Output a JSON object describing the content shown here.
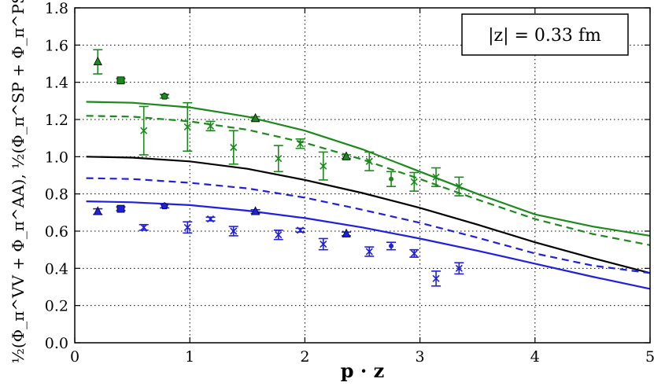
{
  "chart_data": {
    "type": "scatter",
    "xlabel": "p · z",
    "ylabel": "½(Φ_π^VV + Φ_π^AA), ½(Φ_π^SP + Φ_π^PS)",
    "xlim": [
      0,
      5
    ],
    "ylim": [
      0,
      1.8
    ],
    "xticks": [
      0,
      1,
      2,
      3,
      4,
      5
    ],
    "yticks": [
      0.0,
      0.2,
      0.4,
      0.6,
      0.8,
      1.0,
      1.2,
      1.4,
      1.6,
      1.8
    ],
    "xtick_labels": [
      "0",
      "1",
      "2",
      "3",
      "4",
      "5"
    ],
    "ytick_labels": [
      "0.0",
      "0.2",
      "0.4",
      "0.6",
      "0.8",
      "1.0",
      "1.2",
      "1.4",
      "1.6",
      "1.8"
    ],
    "grid": true,
    "annotation": "|z| = 0.33 fm",
    "colors": {
      "green": "#1a8a1a",
      "blue": "#1f1fdf",
      "black": "#000000"
    },
    "curves": [
      {
        "color": "green",
        "style": "solid",
        "x": [
          0.1,
          0.5,
          1.0,
          1.5,
          2.0,
          2.5,
          3.0,
          3.5,
          4.0,
          4.5,
          5.0
        ],
        "y": [
          1.295,
          1.29,
          1.265,
          1.215,
          1.14,
          1.04,
          0.92,
          0.8,
          0.69,
          0.625,
          0.575
        ]
      },
      {
        "color": "green",
        "style": "dashed",
        "x": [
          0.1,
          0.5,
          1.0,
          1.5,
          2.0,
          2.5,
          3.0,
          3.5,
          4.0,
          4.5,
          5.0
        ],
        "y": [
          1.22,
          1.215,
          1.19,
          1.145,
          1.075,
          0.985,
          0.88,
          0.77,
          0.665,
          0.585,
          0.525
        ]
      },
      {
        "color": "black",
        "style": "solid",
        "x": [
          0.1,
          0.5,
          1.0,
          1.5,
          2.0,
          2.5,
          3.0,
          3.5,
          4.0,
          4.5,
          5.0
        ],
        "y": [
          1.0,
          0.995,
          0.975,
          0.935,
          0.875,
          0.805,
          0.725,
          0.635,
          0.54,
          0.455,
          0.375
        ]
      },
      {
        "color": "blue",
        "style": "dashed",
        "x": [
          0.1,
          0.5,
          1.0,
          1.5,
          2.0,
          2.5,
          3.0,
          3.5,
          4.0,
          4.5,
          5.0
        ],
        "y": [
          0.885,
          0.88,
          0.86,
          0.83,
          0.78,
          0.715,
          0.645,
          0.565,
          0.48,
          0.415,
          0.375
        ]
      },
      {
        "color": "blue",
        "style": "solid",
        "x": [
          0.1,
          0.5,
          1.0,
          1.5,
          2.0,
          2.5,
          3.0,
          3.5,
          4.0,
          4.5,
          5.0
        ],
        "y": [
          0.76,
          0.755,
          0.74,
          0.71,
          0.67,
          0.62,
          0.56,
          0.495,
          0.425,
          0.355,
          0.29
        ]
      }
    ],
    "points": [
      {
        "color": "green",
        "marker": "triangle",
        "x": 0.2,
        "y": 1.51,
        "err": 0.065
      },
      {
        "color": "green",
        "marker": "square",
        "x": 0.4,
        "y": 1.41,
        "err": 0.01
      },
      {
        "color": "green",
        "marker": "pentagon",
        "x": 0.78,
        "y": 1.325,
        "err": 0.01
      },
      {
        "color": "green",
        "marker": "x",
        "x": 0.6,
        "y": 1.14,
        "err": 0.13
      },
      {
        "color": "green",
        "marker": "x",
        "x": 0.98,
        "y": 1.16,
        "err": 0.13
      },
      {
        "color": "green",
        "marker": "x",
        "x": 1.18,
        "y": 1.165,
        "err": 0.025
      },
      {
        "color": "green",
        "marker": "x",
        "x": 1.38,
        "y": 1.05,
        "err": 0.09
      },
      {
        "color": "green",
        "marker": "triangle",
        "x": 1.57,
        "y": 1.205,
        "err": 0.01
      },
      {
        "color": "green",
        "marker": "x",
        "x": 1.77,
        "y": 0.99,
        "err": 0.07
      },
      {
        "color": "green",
        "marker": "x",
        "x": 1.96,
        "y": 1.07,
        "err": 0.025
      },
      {
        "color": "green",
        "marker": "x",
        "x": 2.16,
        "y": 0.95,
        "err": 0.075
      },
      {
        "color": "green",
        "marker": "triangle",
        "x": 2.36,
        "y": 1.0,
        "err": 0.01
      },
      {
        "color": "green",
        "marker": "x",
        "x": 2.56,
        "y": 0.975,
        "err": 0.05
      },
      {
        "color": "green",
        "marker": "dot",
        "x": 2.75,
        "y": 0.88,
        "err": 0.04
      },
      {
        "color": "green",
        "marker": "x",
        "x": 2.95,
        "y": 0.865,
        "err": 0.05
      },
      {
        "color": "green",
        "marker": "x",
        "x": 3.14,
        "y": 0.89,
        "err": 0.05
      },
      {
        "color": "green",
        "marker": "x",
        "x": 3.34,
        "y": 0.84,
        "err": 0.05
      },
      {
        "color": "blue",
        "marker": "triangle",
        "x": 0.2,
        "y": 0.705,
        "err": 0.015
      },
      {
        "color": "blue",
        "marker": "square",
        "x": 0.4,
        "y": 0.72,
        "err": 0.01
      },
      {
        "color": "blue",
        "marker": "pentagon",
        "x": 0.78,
        "y": 0.735,
        "err": 0.01
      },
      {
        "color": "blue",
        "marker": "x",
        "x": 0.6,
        "y": 0.62,
        "err": 0.015
      },
      {
        "color": "blue",
        "marker": "x",
        "x": 0.98,
        "y": 0.62,
        "err": 0.03
      },
      {
        "color": "blue",
        "marker": "x",
        "x": 1.18,
        "y": 0.665,
        "err": 0.01
      },
      {
        "color": "blue",
        "marker": "x",
        "x": 1.38,
        "y": 0.6,
        "err": 0.025
      },
      {
        "color": "blue",
        "marker": "triangle",
        "x": 1.57,
        "y": 0.705,
        "err": 0.01
      },
      {
        "color": "blue",
        "marker": "x",
        "x": 1.77,
        "y": 0.58,
        "err": 0.025
      },
      {
        "color": "blue",
        "marker": "x",
        "x": 1.96,
        "y": 0.605,
        "err": 0.01
      },
      {
        "color": "blue",
        "marker": "x",
        "x": 2.16,
        "y": 0.53,
        "err": 0.03
      },
      {
        "color": "blue",
        "marker": "triangle",
        "x": 2.36,
        "y": 0.585,
        "err": 0.01
      },
      {
        "color": "blue",
        "marker": "x",
        "x": 2.56,
        "y": 0.49,
        "err": 0.025
      },
      {
        "color": "blue",
        "marker": "dot",
        "x": 2.75,
        "y": 0.52,
        "err": 0.02
      },
      {
        "color": "blue",
        "marker": "x",
        "x": 2.95,
        "y": 0.48,
        "err": 0.02
      },
      {
        "color": "blue",
        "marker": "x",
        "x": 3.14,
        "y": 0.345,
        "err": 0.04
      },
      {
        "color": "blue",
        "marker": "x",
        "x": 3.34,
        "y": 0.4,
        "err": 0.03
      }
    ]
  }
}
